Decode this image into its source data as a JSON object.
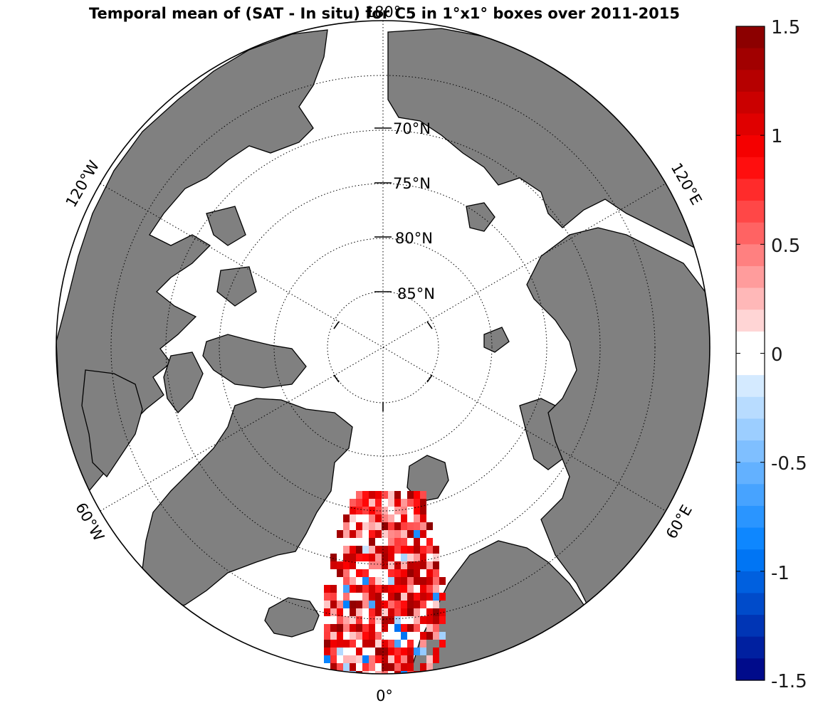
{
  "title": "Temporal mean of (SAT - In situ) for C5 in 1°x1° boxes over 2011-2015",
  "projection": "north-polar-stereographic",
  "parallels": [
    "70°N",
    "75°N",
    "80°N",
    "85°N"
  ],
  "meridians": [
    "180°",
    "120°E",
    "60°E",
    "0°",
    "60°W",
    "120°W"
  ],
  "land_color": "#808080",
  "ocean_color": "#ffffff",
  "colorbar": {
    "ticks": [
      "1.5",
      "1",
      "0.5",
      "0",
      "-0.5",
      "-1",
      "-1.5"
    ],
    "min": -1.5,
    "max": 1.5,
    "step": 0.1,
    "colormap": "blue-white-red"
  }
}
